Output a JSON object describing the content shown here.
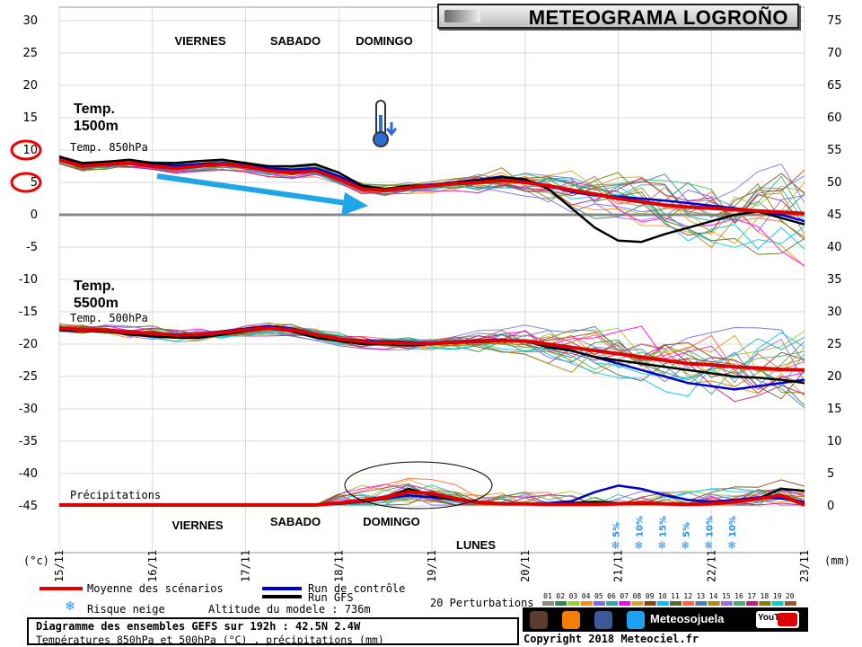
{
  "title": "METEOGRAMA LOGROÑO",
  "chart_data": {
    "type": "line",
    "left_axis": {
      "unit_label": "(°c)",
      "ticks": [
        30,
        25,
        20,
        15,
        10,
        5,
        0,
        -5,
        -10,
        -15,
        -20,
        -25,
        -30,
        -35,
        -40,
        -45
      ],
      "ylim": [
        -45,
        30
      ]
    },
    "right_axis": {
      "unit_label": "(mm)",
      "ticks": [
        75,
        70,
        65,
        60,
        55,
        50,
        45,
        40,
        35,
        30,
        25,
        20,
        15,
        10,
        5,
        0
      ]
    },
    "x_axis": {
      "dates": [
        "15/11",
        "16/11",
        "17/11",
        "18/11",
        "19/11",
        "20/11",
        "21/11",
        "22/11",
        "23/11"
      ],
      "range_hours": [
        0,
        192
      ]
    },
    "panels": [
      {
        "label": "Temp. 850hPa",
        "annotation": "Temp.\n1500m"
      },
      {
        "label": "Temp. 500hPa",
        "annotation": "Temp.\n5500m"
      },
      {
        "label": "Précipitations"
      }
    ],
    "day_labels_top": [
      "VIERNES",
      "SABADO",
      "DOMINGO"
    ],
    "day_labels_bottom": [
      "VIERNES",
      "SABADO",
      "DOMINGO",
      "LUNES"
    ],
    "series_t850": {
      "x": [
        0,
        6,
        12,
        18,
        24,
        30,
        36,
        42,
        48,
        54,
        60,
        66,
        72,
        78,
        84,
        90,
        96,
        102,
        108,
        114,
        120,
        126,
        132,
        138,
        144,
        150,
        156,
        162,
        168,
        174,
        180,
        186,
        192
      ],
      "mean": [
        8.5,
        7.5,
        7.8,
        8,
        7.5,
        7.2,
        7.5,
        7.8,
        7.5,
        6.8,
        6.5,
        6.8,
        5.5,
        4,
        3.8,
        4.2,
        4.5,
        4.8,
        5,
        5.3,
        5,
        4.5,
        3.8,
        3.2,
        2.5,
        2,
        1.5,
        1.2,
        1,
        0.8,
        0.6,
        0.4,
        0.2
      ],
      "gfs": [
        9,
        8,
        8.2,
        8.5,
        8,
        8,
        8.3,
        8.5,
        8,
        7.5,
        7.5,
        7.8,
        6.5,
        4.5,
        4,
        4.5,
        4.5,
        5,
        5.3,
        5.8,
        5.5,
        4,
        1,
        -2,
        -4,
        -4.2,
        -3,
        -2,
        -1,
        0,
        0.5,
        -0.5,
        -1.5
      ],
      "control": [
        8.7,
        7.8,
        7.9,
        8.1,
        7.8,
        7.6,
        7.8,
        8,
        7.7,
        7.2,
        7,
        7.2,
        6,
        4.2,
        4,
        4.3,
        4.7,
        5,
        5.4,
        5.9,
        5.3,
        4.5,
        3.5,
        3,
        2.8,
        2.5,
        2.2,
        1.8,
        1.4,
        1,
        0.6,
        0,
        -1
      ]
    },
    "series_t500": {
      "x": [
        0,
        6,
        12,
        18,
        24,
        30,
        36,
        42,
        48,
        54,
        60,
        66,
        72,
        78,
        84,
        90,
        96,
        102,
        108,
        114,
        120,
        126,
        132,
        138,
        144,
        150,
        156,
        162,
        168,
        174,
        180,
        186,
        192
      ],
      "mean": [
        -17.5,
        -17.8,
        -17.8,
        -18.2,
        -18.3,
        -18.6,
        -18.5,
        -18.2,
        -17.8,
        -17.5,
        -17.8,
        -18.5,
        -19.2,
        -19.6,
        -19.8,
        -19.9,
        -19.9,
        -19.7,
        -19.6,
        -19.5,
        -19.5,
        -20,
        -20.5,
        -21,
        -21.5,
        -22,
        -22.5,
        -23,
        -23.2,
        -23.5,
        -23.7,
        -23.9,
        -24
      ],
      "gfs": [
        -17.8,
        -18,
        -18,
        -18.5,
        -18.8,
        -19,
        -19,
        -18.5,
        -18,
        -17.5,
        -18,
        -19,
        -19.5,
        -20,
        -20,
        -20.2,
        -20,
        -19.8,
        -19.5,
        -19.5,
        -19.5,
        -20.5,
        -21,
        -22,
        -22.5,
        -23,
        -23.5,
        -24,
        -24.5,
        -25,
        -25.2,
        -25.5,
        -26
      ],
      "control": [
        -17.6,
        -17.7,
        -17.9,
        -18.1,
        -18.4,
        -18.5,
        -18.4,
        -18,
        -17.6,
        -17.2,
        -17.6,
        -18.4,
        -19.2,
        -19.4,
        -19.6,
        -19.7,
        -19.8,
        -19.6,
        -19.4,
        -19.3,
        -19.6,
        -20.2,
        -21,
        -22,
        -23,
        -24,
        -25,
        -26,
        -26.5,
        -27,
        -26.5,
        -26,
        -25.5
      ]
    },
    "series_precip": {
      "x": [
        0,
        6,
        12,
        18,
        24,
        30,
        36,
        42,
        48,
        54,
        60,
        66,
        72,
        78,
        84,
        90,
        96,
        102,
        108,
        114,
        120,
        126,
        132,
        138,
        144,
        150,
        156,
        162,
        168,
        174,
        180,
        186,
        192
      ],
      "mean_mm": [
        0,
        0,
        0,
        0,
        0,
        0,
        0,
        0,
        0,
        0,
        0,
        0,
        0.3,
        0.7,
        1.2,
        2,
        1.8,
        1,
        0.4,
        0.2,
        0.2,
        0.1,
        0.1,
        0.1,
        0.2,
        0.3,
        0.2,
        0.1,
        0.2,
        0.5,
        1,
        1.5,
        0
      ],
      "control_mm": [
        0,
        0,
        0,
        0,
        0,
        0,
        0,
        0,
        0,
        0,
        0,
        0,
        0.2,
        0.5,
        1,
        1.5,
        1.2,
        0.8,
        0.3,
        0.2,
        0.2,
        0.3,
        0.6,
        2,
        3,
        2.5,
        1.5,
        0.8,
        0.5,
        0.8,
        1.2,
        1,
        0.5
      ],
      "gfs_mm": [
        0,
        0,
        0,
        0,
        0,
        0,
        0,
        0,
        0,
        0,
        0,
        0,
        0.2,
        0.5,
        1.2,
        2.5,
        1.5,
        0.8,
        0.3,
        0.2,
        0.2,
        0.2,
        0.3,
        0.5,
        0.3,
        0.2,
        0.2,
        0.2,
        0.3,
        0.6,
        1,
        2.5,
        2.2
      ]
    },
    "snow_risk": [
      {
        "x": 144,
        "label": "5%"
      },
      {
        "x": 150,
        "label": "10%"
      },
      {
        "x": 156,
        "label": "15%"
      },
      {
        "x": 162,
        "label": "5%"
      },
      {
        "x": 168,
        "label": "10%"
      },
      {
        "x": 174,
        "label": "10%"
      }
    ],
    "legend": {
      "mean": "Moyenne des scénarios",
      "control": "Run de contrôle",
      "gfs": "Run GFS",
      "snow": "Risque neige",
      "altitude": "Altitude du modele : 736m",
      "perturbations": "20 Perturbations",
      "member_numbers": [
        "01",
        "02",
        "03",
        "04",
        "05",
        "06",
        "07",
        "08",
        "09",
        "10",
        "11",
        "12",
        "13",
        "14",
        "15",
        "16",
        "17",
        "18",
        "19",
        "20"
      ]
    },
    "colors": {
      "mean": "#e00000",
      "control": "#0000cc",
      "gfs": "#000000",
      "arrow": "#1ea6e8",
      "members": [
        "#8a8a8a",
        "#2e8b57",
        "#9acd32",
        "#ff8c00",
        "#7b68ee",
        "#20b2aa",
        "#ff00ff",
        "#daa520",
        "#8b4513",
        "#00bfff",
        "#556b2f",
        "#ff6347",
        "#4682b4",
        "#b8860b",
        "#9370db",
        "#3cb371",
        "#c71585",
        "#808000",
        "#00ced1",
        "#a0522d"
      ]
    },
    "annotations": [
      "circle around 10",
      "circle around 5",
      "arrow descending trend",
      "oval around precipitation peak"
    ]
  },
  "footer": {
    "line1": "Diagramme des ensembles GEFS sur 192h : 42.5N 2.4W",
    "line2": "Températures 850hPa et 500hPa (°C) , précipitations (mm)"
  },
  "social": {
    "label": "Meteosojuela",
    "youtube": "YouTube"
  },
  "copyright": "Copyright 2018 Meteociel.fr"
}
